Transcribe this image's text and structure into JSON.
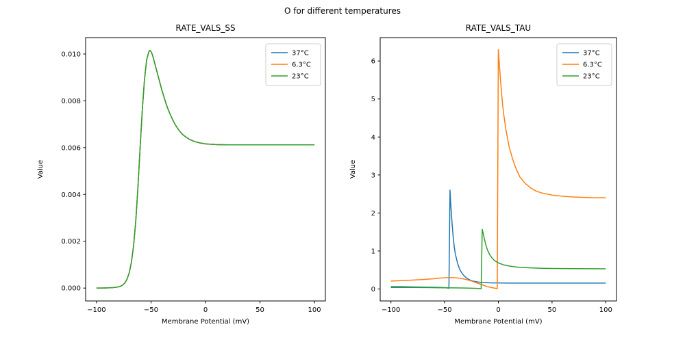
{
  "figure_title": "O for different temperatures",
  "chart_data": [
    {
      "type": "line",
      "title": "RATE_VALS_SS",
      "xlabel": "Membrane Potential (mV)",
      "ylabel": "Value",
      "xlim": [
        -110,
        110
      ],
      "ylim": [
        -0.00055,
        0.0107
      ],
      "xticks": [
        -100,
        -50,
        0,
        50,
        100
      ],
      "xticklabels": [
        "−100",
        "−50",
        "0",
        "50",
        "100"
      ],
      "yticks": [
        0,
        0.002,
        0.004,
        0.006,
        0.008,
        0.01
      ],
      "yticklabels": [
        "0.000",
        "0.002",
        "0.004",
        "0.006",
        "0.008",
        "0.010"
      ],
      "grid": false,
      "legend_loc": "upper right",
      "legend": [
        "37°C",
        "6.3°C",
        "23°C"
      ],
      "series": [
        {
          "name": "37°C",
          "color": "#1f77b4",
          "x": [
            -100,
            -95,
            -90,
            -85,
            -80,
            -78,
            -76,
            -74,
            -72,
            -70,
            -68,
            -66,
            -64,
            -62,
            -60,
            -58,
            -56,
            -54,
            -52,
            -51,
            -50,
            -49,
            -48,
            -46,
            -44,
            -42,
            -40,
            -38,
            -36,
            -34,
            -32,
            -30,
            -28,
            -26,
            -24,
            -22,
            -20,
            -15,
            -10,
            -5,
            0,
            10,
            20,
            30,
            40,
            50,
            60,
            80,
            100
          ],
          "y": [
            0,
            0,
            1e-05,
            2e-05,
            5e-05,
            8e-05,
            0.00013,
            0.00022,
            0.00038,
            0.00065,
            0.0011,
            0.0018,
            0.00285,
            0.0043,
            0.006,
            0.0076,
            0.0089,
            0.00975,
            0.0101,
            0.01015,
            0.0101,
            0.01,
            0.00985,
            0.0095,
            0.00915,
            0.0088,
            0.00845,
            0.00815,
            0.00785,
            0.0076,
            0.00738,
            0.00718,
            0.007,
            0.00685,
            0.00672,
            0.00661,
            0.00652,
            0.00636,
            0.00626,
            0.0062,
            0.00616,
            0.00613,
            0.00612,
            0.00612,
            0.00612,
            0.00612,
            0.00612,
            0.00612,
            0.00612
          ]
        },
        {
          "name": "6.3°C",
          "color": "#ff7f0e",
          "x": [
            -100,
            -95,
            -90,
            -85,
            -80,
            -78,
            -76,
            -74,
            -72,
            -70,
            -68,
            -66,
            -64,
            -62,
            -60,
            -58,
            -56,
            -54,
            -52,
            -51,
            -50,
            -49,
            -48,
            -46,
            -44,
            -42,
            -40,
            -38,
            -36,
            -34,
            -32,
            -30,
            -28,
            -26,
            -24,
            -22,
            -20,
            -15,
            -10,
            -5,
            0,
            10,
            20,
            30,
            40,
            50,
            60,
            80,
            100
          ],
          "y": [
            0,
            0,
            1e-05,
            2e-05,
            5e-05,
            8e-05,
            0.00013,
            0.00022,
            0.00038,
            0.00065,
            0.0011,
            0.0018,
            0.00285,
            0.0043,
            0.006,
            0.0076,
            0.0089,
            0.00975,
            0.0101,
            0.01015,
            0.0101,
            0.01,
            0.00985,
            0.0095,
            0.00915,
            0.0088,
            0.00845,
            0.00815,
            0.00785,
            0.0076,
            0.00738,
            0.00718,
            0.007,
            0.00685,
            0.00672,
            0.00661,
            0.00652,
            0.00636,
            0.00626,
            0.0062,
            0.00616,
            0.00613,
            0.00612,
            0.00612,
            0.00612,
            0.00612,
            0.00612,
            0.00612,
            0.00612
          ]
        },
        {
          "name": "23°C",
          "color": "#2ca02c",
          "x": [
            -100,
            -95,
            -90,
            -85,
            -80,
            -78,
            -76,
            -74,
            -72,
            -70,
            -68,
            -66,
            -64,
            -62,
            -60,
            -58,
            -56,
            -54,
            -52,
            -51,
            -50,
            -49,
            -48,
            -46,
            -44,
            -42,
            -40,
            -38,
            -36,
            -34,
            -32,
            -30,
            -28,
            -26,
            -24,
            -22,
            -20,
            -15,
            -10,
            -5,
            0,
            10,
            20,
            30,
            40,
            50,
            60,
            80,
            100
          ],
          "y": [
            0,
            0,
            1e-05,
            2e-05,
            5e-05,
            8e-05,
            0.00013,
            0.00022,
            0.00038,
            0.00065,
            0.0011,
            0.0018,
            0.00285,
            0.0043,
            0.006,
            0.0076,
            0.0089,
            0.00975,
            0.0101,
            0.01015,
            0.0101,
            0.01,
            0.00985,
            0.0095,
            0.00915,
            0.0088,
            0.00845,
            0.00815,
            0.00785,
            0.0076,
            0.00738,
            0.00718,
            0.007,
            0.00685,
            0.00672,
            0.00661,
            0.00652,
            0.00636,
            0.00626,
            0.0062,
            0.00616,
            0.00613,
            0.00612,
            0.00612,
            0.00612,
            0.00612,
            0.00612,
            0.00612,
            0.00612
          ]
        }
      ]
    },
    {
      "type": "line",
      "title": "RATE_VALS_TAU",
      "xlabel": "Membrane Potential (mV)",
      "ylabel": "Value",
      "xlim": [
        -110,
        110
      ],
      "ylim": [
        -0.315,
        6.615
      ],
      "xticks": [
        -100,
        -50,
        0,
        50,
        100
      ],
      "xticklabels": [
        "−100",
        "−50",
        "0",
        "50",
        "100"
      ],
      "yticks": [
        0,
        1,
        2,
        3,
        4,
        5,
        6
      ],
      "yticklabels": [
        "0",
        "1",
        "2",
        "3",
        "4",
        "5",
        "6"
      ],
      "grid": false,
      "legend_loc": "upper right",
      "legend": [
        "37°C",
        "6.3°C",
        "23°C"
      ],
      "series": [
        {
          "name": "37°C",
          "color": "#1f77b4",
          "x": [
            -100,
            -90,
            -80,
            -70,
            -60,
            -55,
            -50,
            -48,
            -46,
            -45,
            -44,
            -43,
            -42,
            -41,
            -40,
            -38,
            -36,
            -34,
            -32,
            -30,
            -28,
            -26,
            -24,
            -22,
            -20,
            -15,
            -10,
            -5,
            0,
            10,
            20,
            40,
            60,
            80,
            100
          ],
          "y": [
            0.06,
            0.06,
            0.055,
            0.05,
            0.045,
            0.04,
            0.035,
            0.03,
            0.02,
            2.6,
            2.1,
            1.7,
            1.35,
            1.1,
            0.92,
            0.68,
            0.52,
            0.42,
            0.35,
            0.3,
            0.26,
            0.23,
            0.21,
            0.2,
            0.19,
            0.17,
            0.165,
            0.16,
            0.16,
            0.155,
            0.155,
            0.155,
            0.155,
            0.155,
            0.155
          ]
        },
        {
          "name": "6.3°C",
          "color": "#ff7f0e",
          "x": [
            -100,
            -90,
            -80,
            -70,
            -60,
            -55,
            -50,
            -45,
            -40,
            -35,
            -30,
            -25,
            -20,
            -15,
            -10,
            -5,
            -2,
            -1,
            0,
            1,
            2,
            3,
            4,
            5,
            7,
            10,
            13,
            16,
            20,
            25,
            30,
            35,
            40,
            50,
            60,
            70,
            80,
            90,
            100
          ],
          "y": [
            0.21,
            0.22,
            0.235,
            0.25,
            0.27,
            0.285,
            0.295,
            0.3,
            0.295,
            0.28,
            0.25,
            0.21,
            0.16,
            0.11,
            0.06,
            0.03,
            0.015,
            0.01,
            6.3,
            5.9,
            5.5,
            5.15,
            4.85,
            4.6,
            4.2,
            3.75,
            3.45,
            3.2,
            2.95,
            2.78,
            2.66,
            2.58,
            2.53,
            2.47,
            2.44,
            2.42,
            2.41,
            2.4,
            2.4
          ]
        },
        {
          "name": "23°C",
          "color": "#2ca02c",
          "x": [
            -100,
            -90,
            -80,
            -70,
            -60,
            -50,
            -40,
            -30,
            -25,
            -20,
            -18,
            -17,
            -16,
            -15,
            -14,
            -13,
            -12,
            -11,
            -10,
            -8,
            -6,
            -4,
            -2,
            0,
            5,
            10,
            15,
            20,
            30,
            40,
            50,
            70,
            100
          ],
          "y": [
            0.04,
            0.04,
            0.04,
            0.038,
            0.035,
            0.032,
            0.03,
            0.025,
            0.02,
            0.015,
            0.012,
            0.01,
            0.005,
            1.57,
            1.45,
            1.32,
            1.2,
            1.1,
            1.02,
            0.9,
            0.82,
            0.76,
            0.72,
            0.685,
            0.635,
            0.605,
            0.585,
            0.57,
            0.555,
            0.545,
            0.54,
            0.535,
            0.53
          ]
        }
      ]
    }
  ]
}
